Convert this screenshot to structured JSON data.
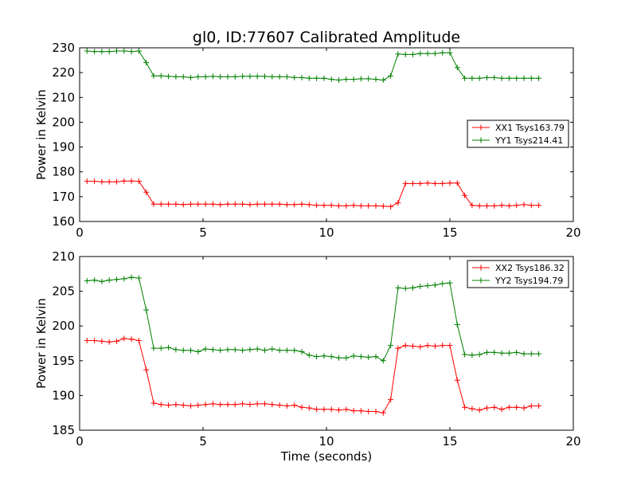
{
  "figure": {
    "title": "gl0, ID:77607 Calibrated Amplitude"
  },
  "chart_data": [
    {
      "type": "line",
      "title": "gl0, ID:77607 Calibrated Amplitude",
      "xlabel": "",
      "ylabel": "Power in Kelvin",
      "xlim": [
        0,
        20
      ],
      "ylim": [
        160,
        230
      ],
      "xticks": [
        0,
        5,
        10,
        15,
        20
      ],
      "yticks": [
        160,
        170,
        180,
        190,
        200,
        210,
        220,
        230
      ],
      "grid": false,
      "legend_position": "center-right",
      "x": [
        0.3,
        0.6,
        0.9,
        1.2,
        1.5,
        1.8,
        2.1,
        2.4,
        2.7,
        3.0,
        3.3,
        3.6,
        3.9,
        4.2,
        4.5,
        4.8,
        5.1,
        5.4,
        5.7,
        6.0,
        6.3,
        6.6,
        6.9,
        7.2,
        7.5,
        7.8,
        8.1,
        8.4,
        8.7,
        9.0,
        9.3,
        9.6,
        9.9,
        10.2,
        10.5,
        10.8,
        11.1,
        11.4,
        11.7,
        12.0,
        12.3,
        12.6,
        12.9,
        13.2,
        13.5,
        13.8,
        14.1,
        14.4,
        14.7,
        15.0,
        15.3,
        15.6,
        15.9,
        16.2,
        16.5,
        16.8,
        17.1,
        17.4,
        17.7,
        18.0,
        18.3,
        18.6
      ],
      "series": [
        {
          "name": "XX1 Tsys163.79",
          "color": "#ff0000",
          "values": [
            176.2,
            176.2,
            176.0,
            176.0,
            176.0,
            176.3,
            176.3,
            176.2,
            171.8,
            167.0,
            167.0,
            167.0,
            167.0,
            166.8,
            167.0,
            167.0,
            167.0,
            167.0,
            166.8,
            167.0,
            167.0,
            167.0,
            166.8,
            167.0,
            167.0,
            167.0,
            167.0,
            166.8,
            166.8,
            167.0,
            166.8,
            166.5,
            166.5,
            166.5,
            166.3,
            166.3,
            166.5,
            166.3,
            166.3,
            166.3,
            166.2,
            166.0,
            167.5,
            175.3,
            175.3,
            175.3,
            175.5,
            175.3,
            175.3,
            175.5,
            175.5,
            170.5,
            166.5,
            166.3,
            166.3,
            166.3,
            166.5,
            166.3,
            166.5,
            166.8,
            166.5,
            166.5
          ]
        },
        {
          "name": "YY1 Tsys214.41",
          "color": "#008000",
          "values": [
            228.7,
            228.5,
            228.5,
            228.5,
            228.7,
            228.7,
            228.5,
            228.7,
            224.0,
            218.7,
            218.7,
            218.5,
            218.3,
            218.3,
            218.0,
            218.3,
            218.3,
            218.5,
            218.3,
            218.3,
            218.3,
            218.5,
            218.5,
            218.5,
            218.5,
            218.3,
            218.3,
            218.3,
            218.0,
            218.0,
            217.7,
            217.7,
            217.7,
            217.3,
            217.0,
            217.3,
            217.3,
            217.5,
            217.5,
            217.3,
            217.0,
            218.7,
            227.5,
            227.3,
            227.3,
            227.7,
            227.7,
            227.7,
            228.0,
            228.0,
            222.0,
            217.7,
            217.7,
            217.7,
            218.0,
            218.0,
            217.7,
            217.7,
            217.7,
            217.7,
            217.7,
            217.7
          ]
        }
      ]
    },
    {
      "type": "line",
      "title": "",
      "xlabel": "Time (seconds)",
      "ylabel": "Power in Kelvin",
      "xlim": [
        0,
        20
      ],
      "ylim": [
        185,
        210
      ],
      "xticks": [
        0,
        5,
        10,
        15,
        20
      ],
      "yticks": [
        185,
        190,
        195,
        200,
        205,
        210
      ],
      "grid": false,
      "legend_position": "top-right",
      "x": [
        0.3,
        0.6,
        0.9,
        1.2,
        1.5,
        1.8,
        2.1,
        2.4,
        2.7,
        3.0,
        3.3,
        3.6,
        3.9,
        4.2,
        4.5,
        4.8,
        5.1,
        5.4,
        5.7,
        6.0,
        6.3,
        6.6,
        6.9,
        7.2,
        7.5,
        7.8,
        8.1,
        8.4,
        8.7,
        9.0,
        9.3,
        9.6,
        9.9,
        10.2,
        10.5,
        10.8,
        11.1,
        11.4,
        11.7,
        12.0,
        12.3,
        12.6,
        12.9,
        13.2,
        13.5,
        13.8,
        14.1,
        14.4,
        14.7,
        15.0,
        15.3,
        15.6,
        15.9,
        16.2,
        16.5,
        16.8,
        17.1,
        17.4,
        17.7,
        18.0,
        18.3,
        18.6
      ],
      "series": [
        {
          "name": "XX2 Tsys186.32",
          "color": "#ff0000",
          "values": [
            197.9,
            197.9,
            197.8,
            197.7,
            197.8,
            198.2,
            198.1,
            197.9,
            193.7,
            188.9,
            188.7,
            188.6,
            188.7,
            188.6,
            188.5,
            188.6,
            188.7,
            188.8,
            188.7,
            188.7,
            188.7,
            188.8,
            188.7,
            188.8,
            188.8,
            188.7,
            188.6,
            188.5,
            188.6,
            188.3,
            188.2,
            188.0,
            188.0,
            188.0,
            187.9,
            188.0,
            187.8,
            187.8,
            187.7,
            187.7,
            187.5,
            189.4,
            196.8,
            197.2,
            197.1,
            197.0,
            197.2,
            197.1,
            197.2,
            197.2,
            192.2,
            188.3,
            188.1,
            187.9,
            188.2,
            188.3,
            188.0,
            188.3,
            188.3,
            188.2,
            188.5,
            188.5
          ]
        },
        {
          "name": "YY2 Tsys194.79",
          "color": "#008000",
          "values": [
            206.5,
            206.6,
            206.4,
            206.6,
            206.7,
            206.8,
            207.0,
            206.9,
            202.3,
            196.8,
            196.8,
            196.9,
            196.6,
            196.5,
            196.5,
            196.3,
            196.7,
            196.6,
            196.5,
            196.6,
            196.6,
            196.5,
            196.6,
            196.7,
            196.5,
            196.7,
            196.5,
            196.5,
            196.5,
            196.3,
            195.8,
            195.6,
            195.7,
            195.6,
            195.4,
            195.4,
            195.7,
            195.6,
            195.5,
            195.6,
            195.0,
            197.2,
            205.5,
            205.4,
            205.5,
            205.7,
            205.8,
            205.9,
            206.1,
            206.2,
            200.2,
            195.9,
            195.8,
            195.9,
            196.2,
            196.2,
            196.1,
            196.1,
            196.2,
            196.0,
            196.0,
            196.0
          ]
        }
      ]
    }
  ]
}
